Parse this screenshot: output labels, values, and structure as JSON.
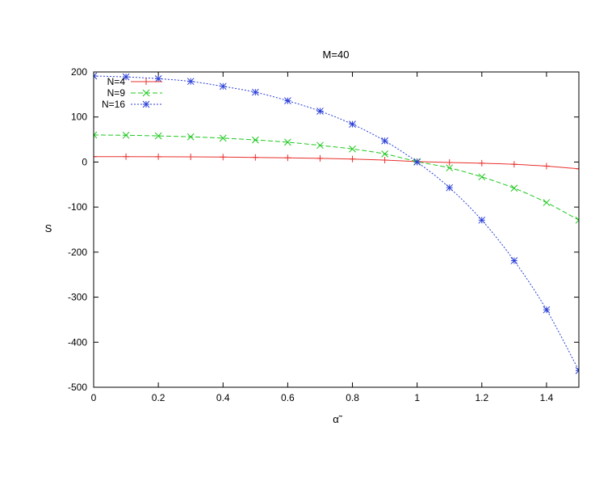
{
  "chart_data": {
    "type": "line",
    "title": "M=40",
    "xlabel": "α̃",
    "ylabel": "S",
    "xlim": [
      0,
      1.5
    ],
    "ylim": [
      -500,
      200
    ],
    "xticks": [
      0,
      0.2,
      0.4,
      0.6,
      0.8,
      1,
      1.2,
      1.4
    ],
    "xtick_labels": [
      "0",
      "0.2",
      "0.4",
      "0.6",
      "0.8",
      "1",
      "1.2",
      "1.4"
    ],
    "yticks": [
      -500,
      -400,
      -300,
      -200,
      -100,
      0,
      100,
      200
    ],
    "ytick_labels": [
      "-500",
      "-400",
      "-300",
      "-200",
      "-100",
      "0",
      "100",
      "200"
    ],
    "grid": false,
    "legend_position": "top-left",
    "x": [
      0,
      0.1,
      0.2,
      0.3,
      0.4,
      0.5,
      0.6,
      0.7,
      0.8,
      0.9,
      1.0,
      1.1,
      1.2,
      1.3,
      1.4,
      1.5
    ],
    "series": [
      {
        "name": "N=4",
        "color": "#e8302c",
        "marker": "plus",
        "dash": "solid",
        "values": [
          12,
          12,
          11.8,
          11.5,
          11,
          10.3,
          9.4,
          8.2,
          6.7,
          4.3,
          1,
          -1,
          -2.5,
          -5,
          -9,
          -15
        ]
      },
      {
        "name": "N=9",
        "color": "#1dc81d",
        "marker": "cross",
        "dash": "dashed",
        "values": [
          60,
          59.5,
          58,
          56,
          53,
          49,
          44,
          37,
          29,
          18,
          1,
          -13,
          -33,
          -58,
          -90,
          -129
        ]
      },
      {
        "name": "N=16",
        "color": "#2a3fd8",
        "marker": "star",
        "dash": "dotted",
        "values": [
          191,
          189,
          185,
          179,
          168,
          155,
          136,
          113,
          84,
          47,
          0,
          -57,
          -129,
          -219,
          -328,
          -463
        ]
      }
    ]
  }
}
